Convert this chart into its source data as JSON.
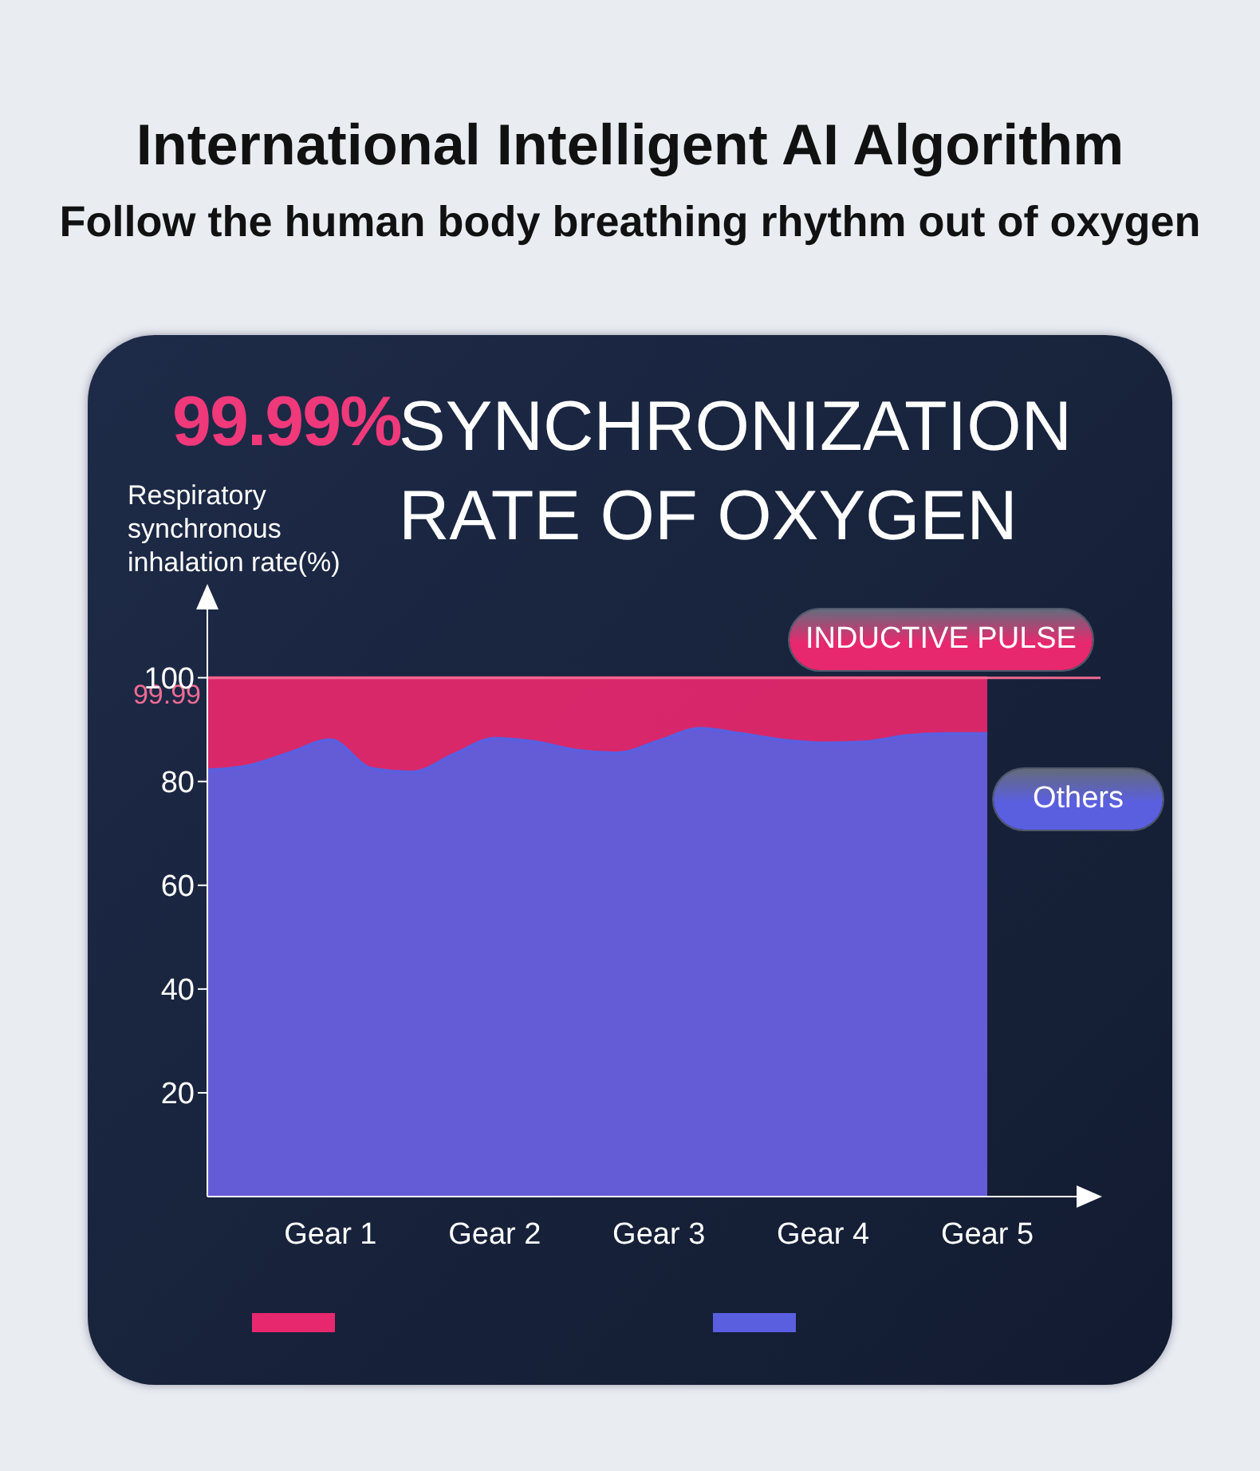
{
  "chart_data": {
    "type": "area",
    "title": "International Intelligent AI Algorithm",
    "subtitle": "Follow the human body breathing rhythm out of oxygen",
    "annotations": [
      "99.99%",
      "SYNCHRONIZATION RATE OF OXYGEN"
    ],
    "ylabel": "Respiratory synchronous inhalation rate(%)",
    "categories": [
      null,
      null,
      null,
      "Gear 1",
      null,
      null,
      null,
      "Gear 2",
      null,
      null,
      null,
      "Gear 3",
      null,
      null,
      null,
      "Gear 4",
      null,
      null,
      null,
      "Gear 5"
    ],
    "ylim": [
      0,
      115
    ],
    "yticks": [
      20,
      40,
      60,
      80,
      100
    ],
    "ref_lines": [
      {
        "axis": "y",
        "value": 99.99,
        "label": "99.99",
        "color": "#f06a93"
      }
    ],
    "series": [
      {
        "name": "INDUCTIVE PULSE",
        "color": "#e8286e",
        "values": [
          99.99,
          99.99,
          99.99,
          99.99,
          99.99,
          99.99,
          99.99,
          99.99,
          99.99,
          99.99,
          99.99,
          99.99,
          99.99,
          99.99,
          99.99,
          99.99,
          99.99,
          99.99,
          99.99,
          99.99
        ]
      },
      {
        "name": "Others",
        "color": "#5a5fe0",
        "values": [
          82.2,
          83,
          85.5,
          88,
          82.5,
          81.8,
          85.2,
          88.3,
          87.6,
          86,
          85.5,
          87.8,
          90.2,
          89.2,
          88,
          87.4,
          87.6,
          88.8,
          89.2,
          89.2
        ]
      }
    ],
    "legend": "right"
  }
}
